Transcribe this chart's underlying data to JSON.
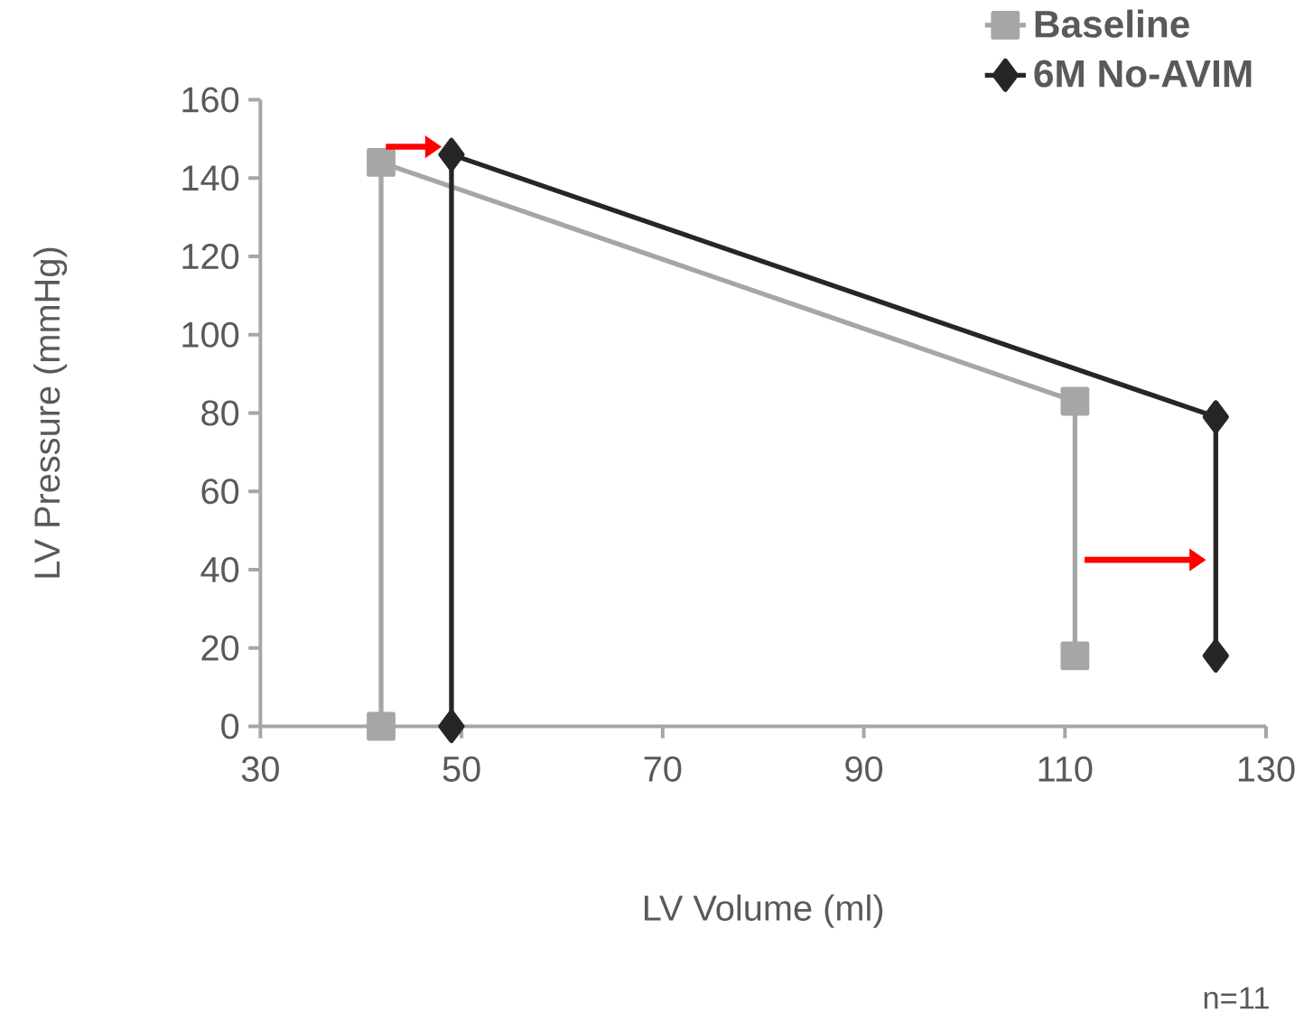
{
  "chart_data": {
    "type": "line",
    "xlabel": "LV Volume (ml)",
    "ylabel": "LV Pressure (mmHg)",
    "xlim": [
      30,
      130
    ],
    "xticks": [
      30,
      50,
      70,
      90,
      110,
      130
    ],
    "ylim": [
      0,
      160
    ],
    "yticks": [
      0,
      20,
      40,
      60,
      80,
      100,
      120,
      140,
      160
    ],
    "grid": false,
    "legend": "top right",
    "line_style": "solid",
    "series": [
      {
        "name": "Baseline",
        "color": "#a6a6a6",
        "marker": "square",
        "x": [
          42,
          42,
          111,
          111
        ],
        "values": [
          0,
          144,
          83,
          18
        ]
      },
      {
        "name": "6M No-AVIM",
        "color": "#262626",
        "marker": "diamond",
        "x": [
          49,
          49,
          125,
          125
        ],
        "values": [
          0,
          146,
          79,
          18
        ]
      }
    ],
    "annotations": [
      "n=11"
    ]
  }
}
